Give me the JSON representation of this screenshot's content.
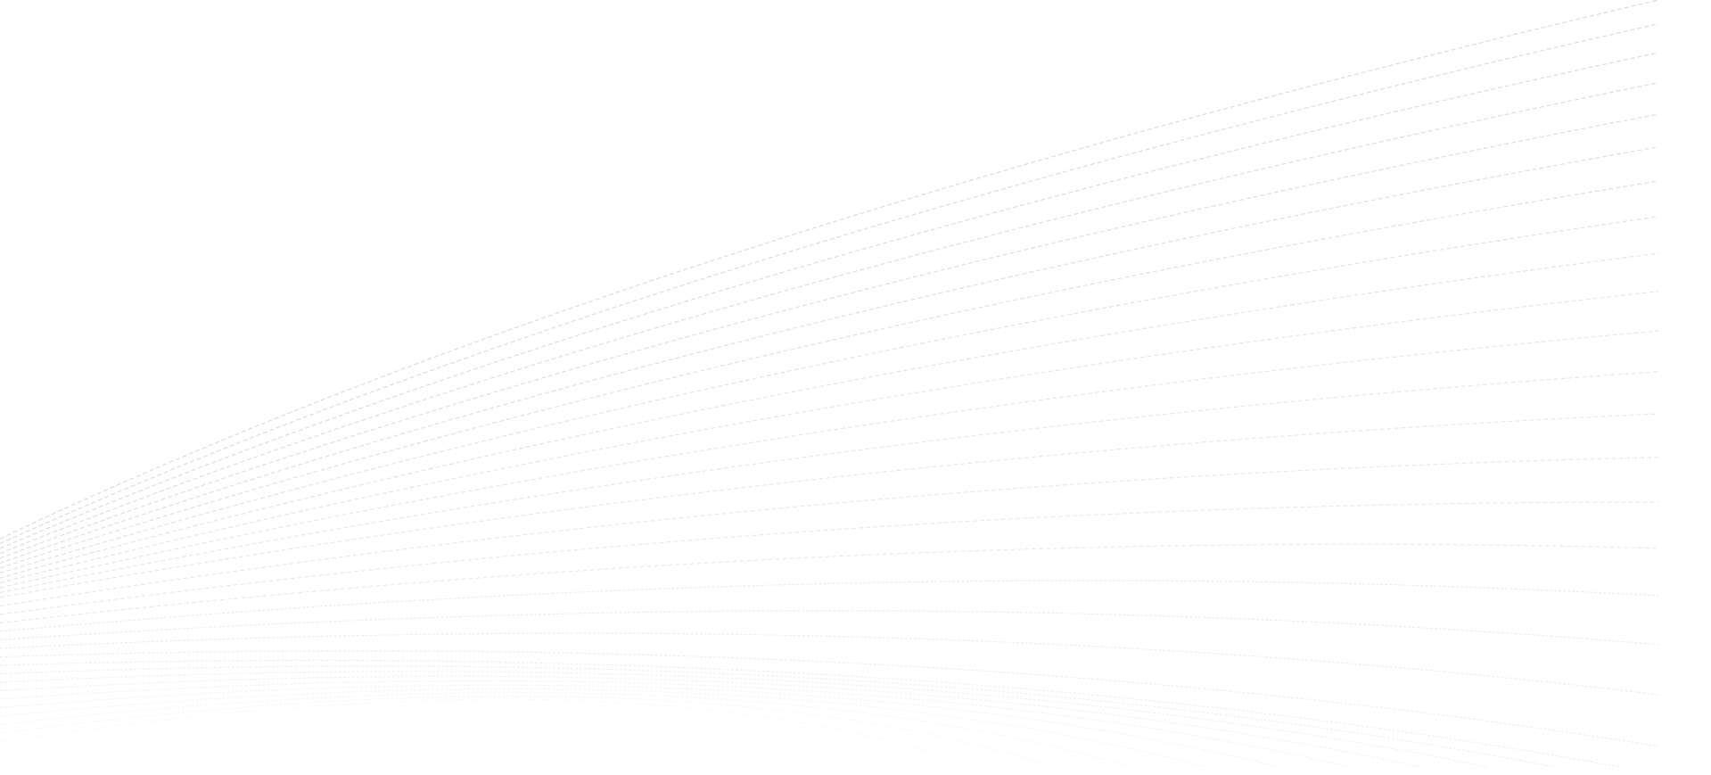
{
  "background": {
    "color": "#ffffff",
    "line_color": "#d8d8d8",
    "pattern": "dashed-wave-lines"
  }
}
